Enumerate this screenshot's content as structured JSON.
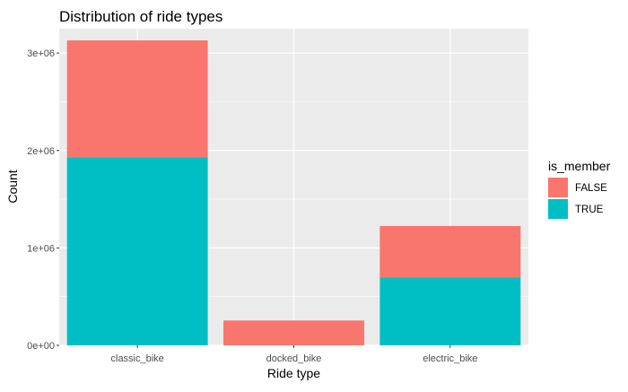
{
  "chart_data": {
    "type": "bar",
    "stacked": true,
    "title": "Distribution of ride types",
    "xlabel": "Ride type",
    "ylabel": "Count",
    "categories": [
      "classic_bike",
      "docked_bike",
      "electric_bike"
    ],
    "series": [
      {
        "name": "FALSE",
        "color": "#F8766D",
        "values": [
          1200000,
          255000,
          530000
        ]
      },
      {
        "name": "TRUE",
        "color": "#00BFC4",
        "values": [
          1930000,
          0,
          695000
        ]
      }
    ],
    "ylim": [
      0,
      3250000
    ],
    "yticks": [
      0,
      1000000,
      2000000,
      3000000
    ],
    "ytick_labels": [
      "0e+00",
      "1e+06",
      "2e+06",
      "3e+06"
    ],
    "legend": {
      "title": "is_member",
      "position": "right",
      "items": [
        "FALSE",
        "TRUE"
      ]
    },
    "grid": true,
    "panel_background": "#EBEBEB",
    "gridline_color": "#FFFFFF"
  }
}
